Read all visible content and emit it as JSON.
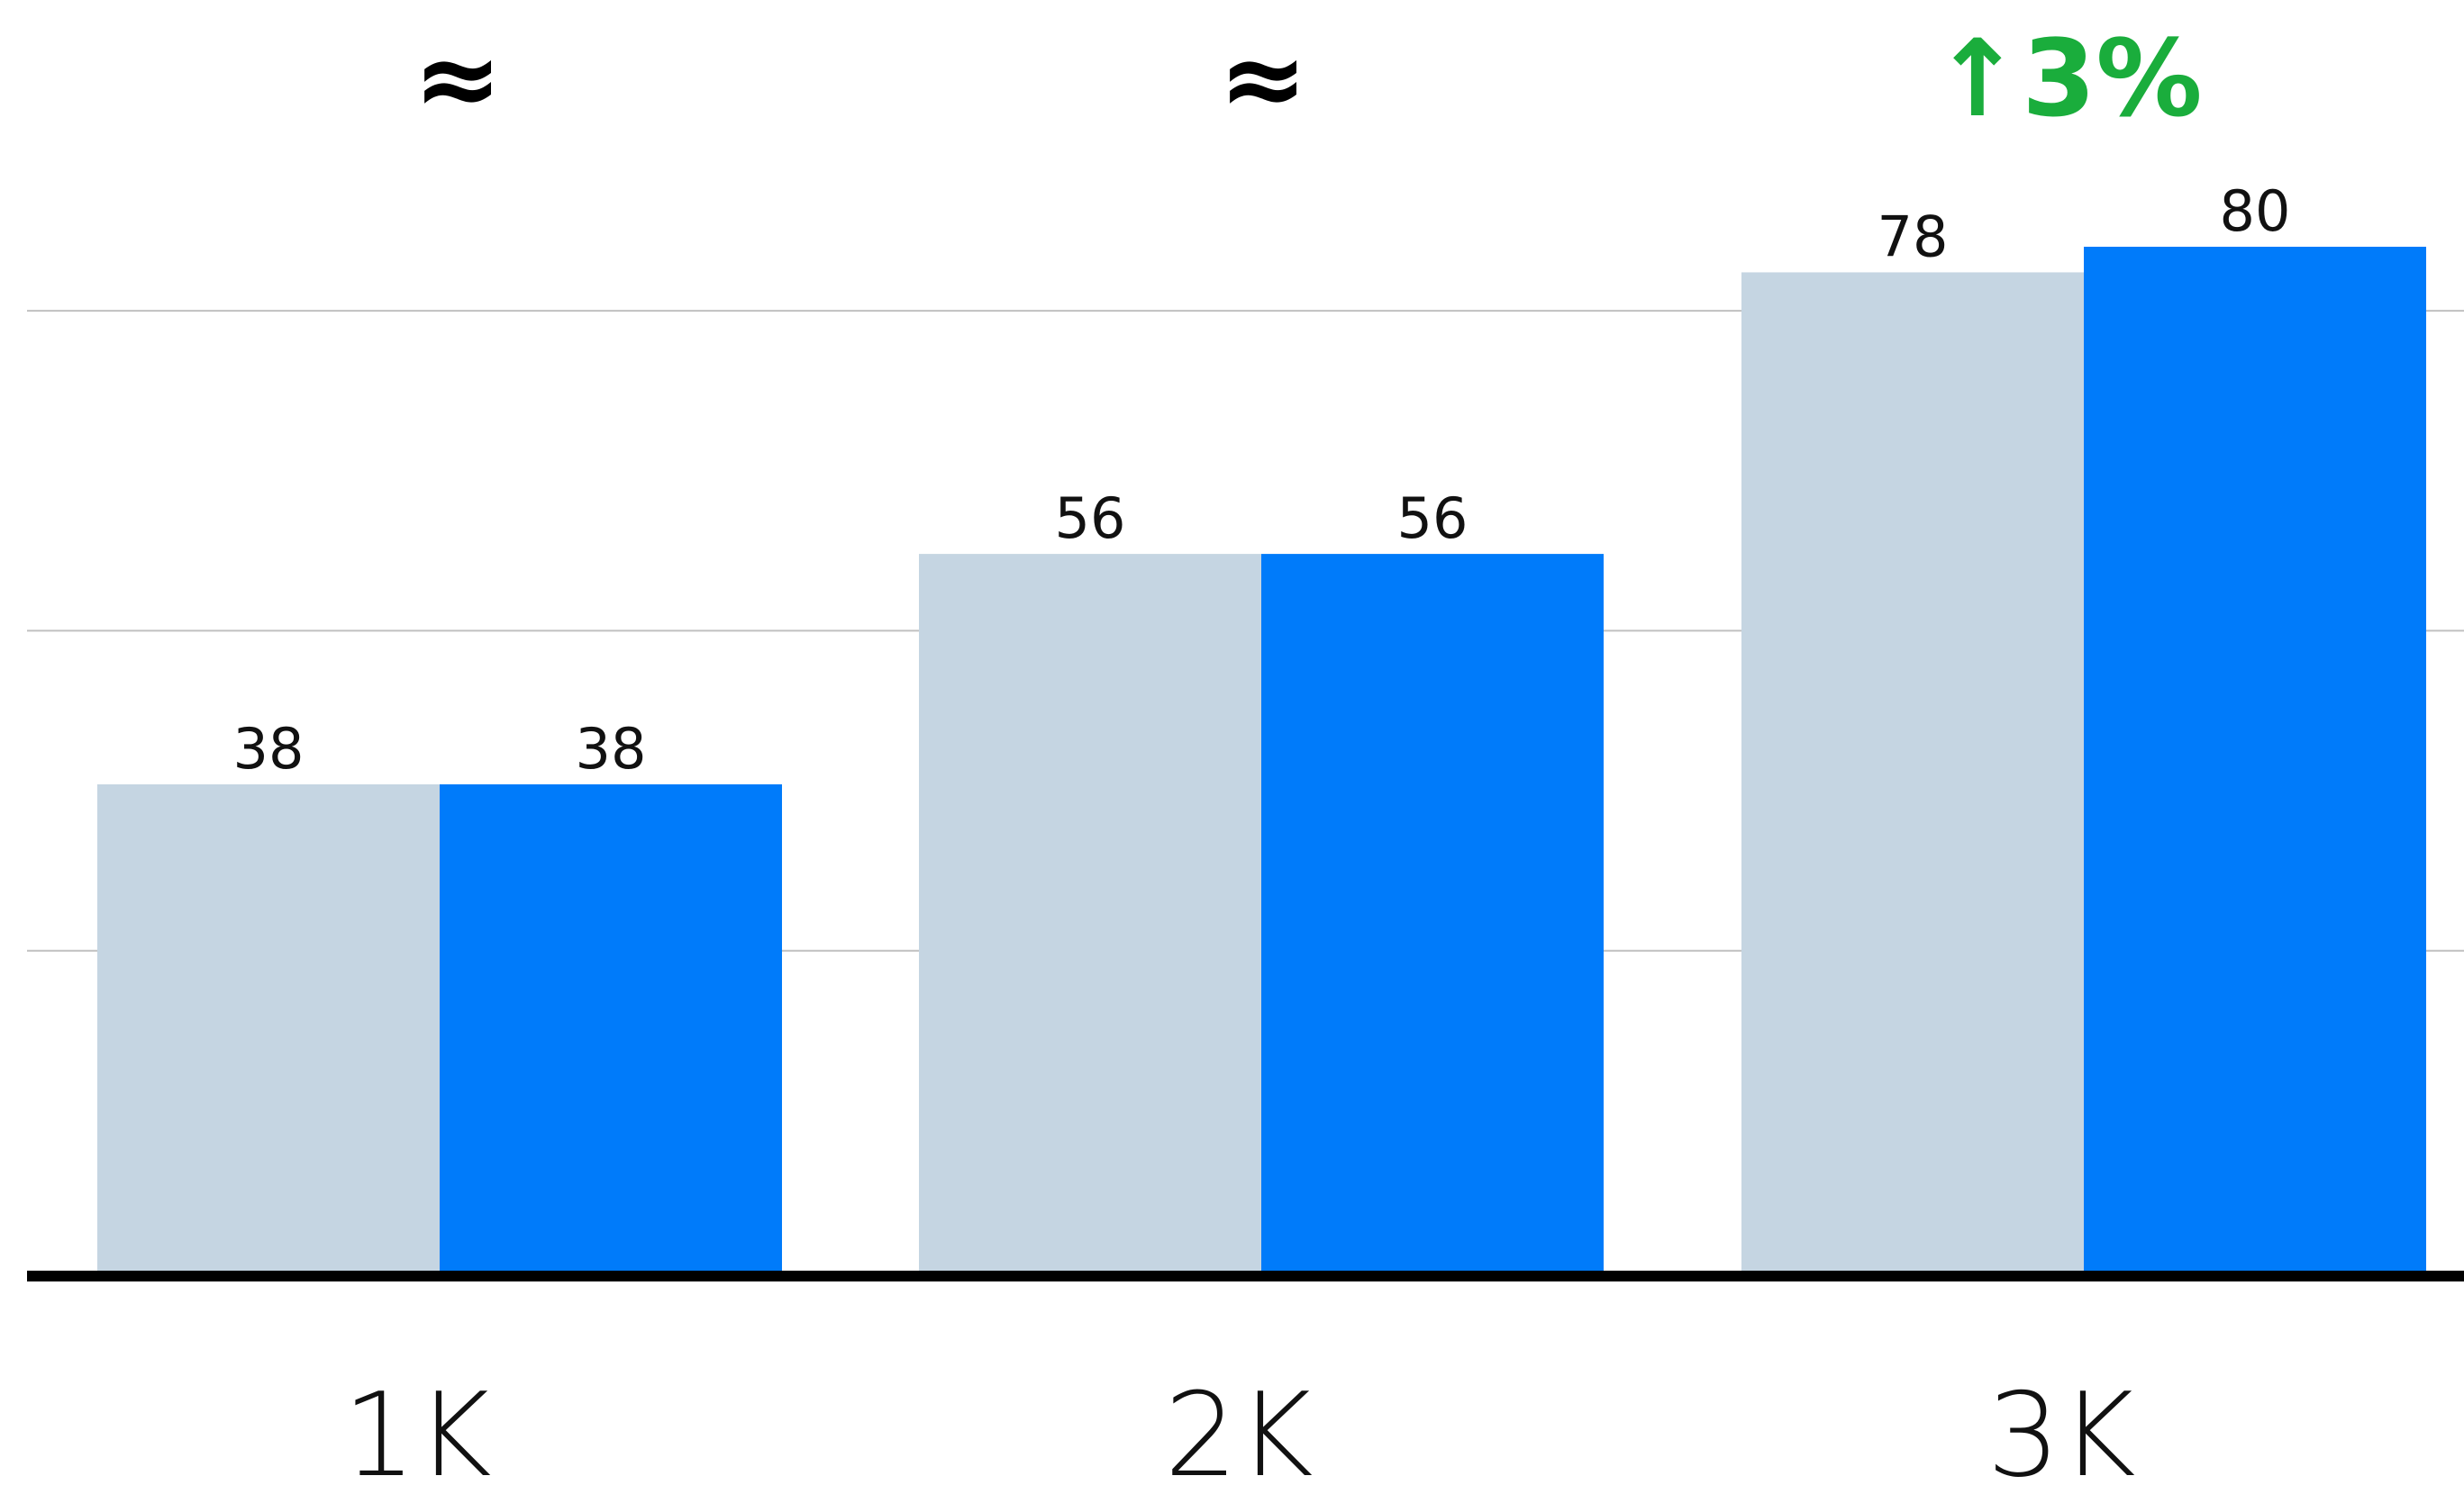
{
  "chart_data": {
    "type": "bar",
    "categories": [
      "1K",
      "2K",
      "3K"
    ],
    "series": [
      {
        "color": "#c5d5e2",
        "values": [
          38,
          56,
          78
        ]
      },
      {
        "color": "#007bfa",
        "values": [
          38,
          56,
          80
        ]
      }
    ],
    "annotations": [
      {
        "text": "≈",
        "color": "#000000"
      },
      {
        "text": "≈",
        "color": "#000000"
      },
      {
        "text": "↑3%",
        "color": "#1aad3c"
      }
    ],
    "ylim": [
      0,
      80
    ],
    "gridlines": [
      25,
      50,
      75
    ],
    "grid": true,
    "legend": "none",
    "title": "",
    "xlabel": "",
    "ylabel": ""
  }
}
